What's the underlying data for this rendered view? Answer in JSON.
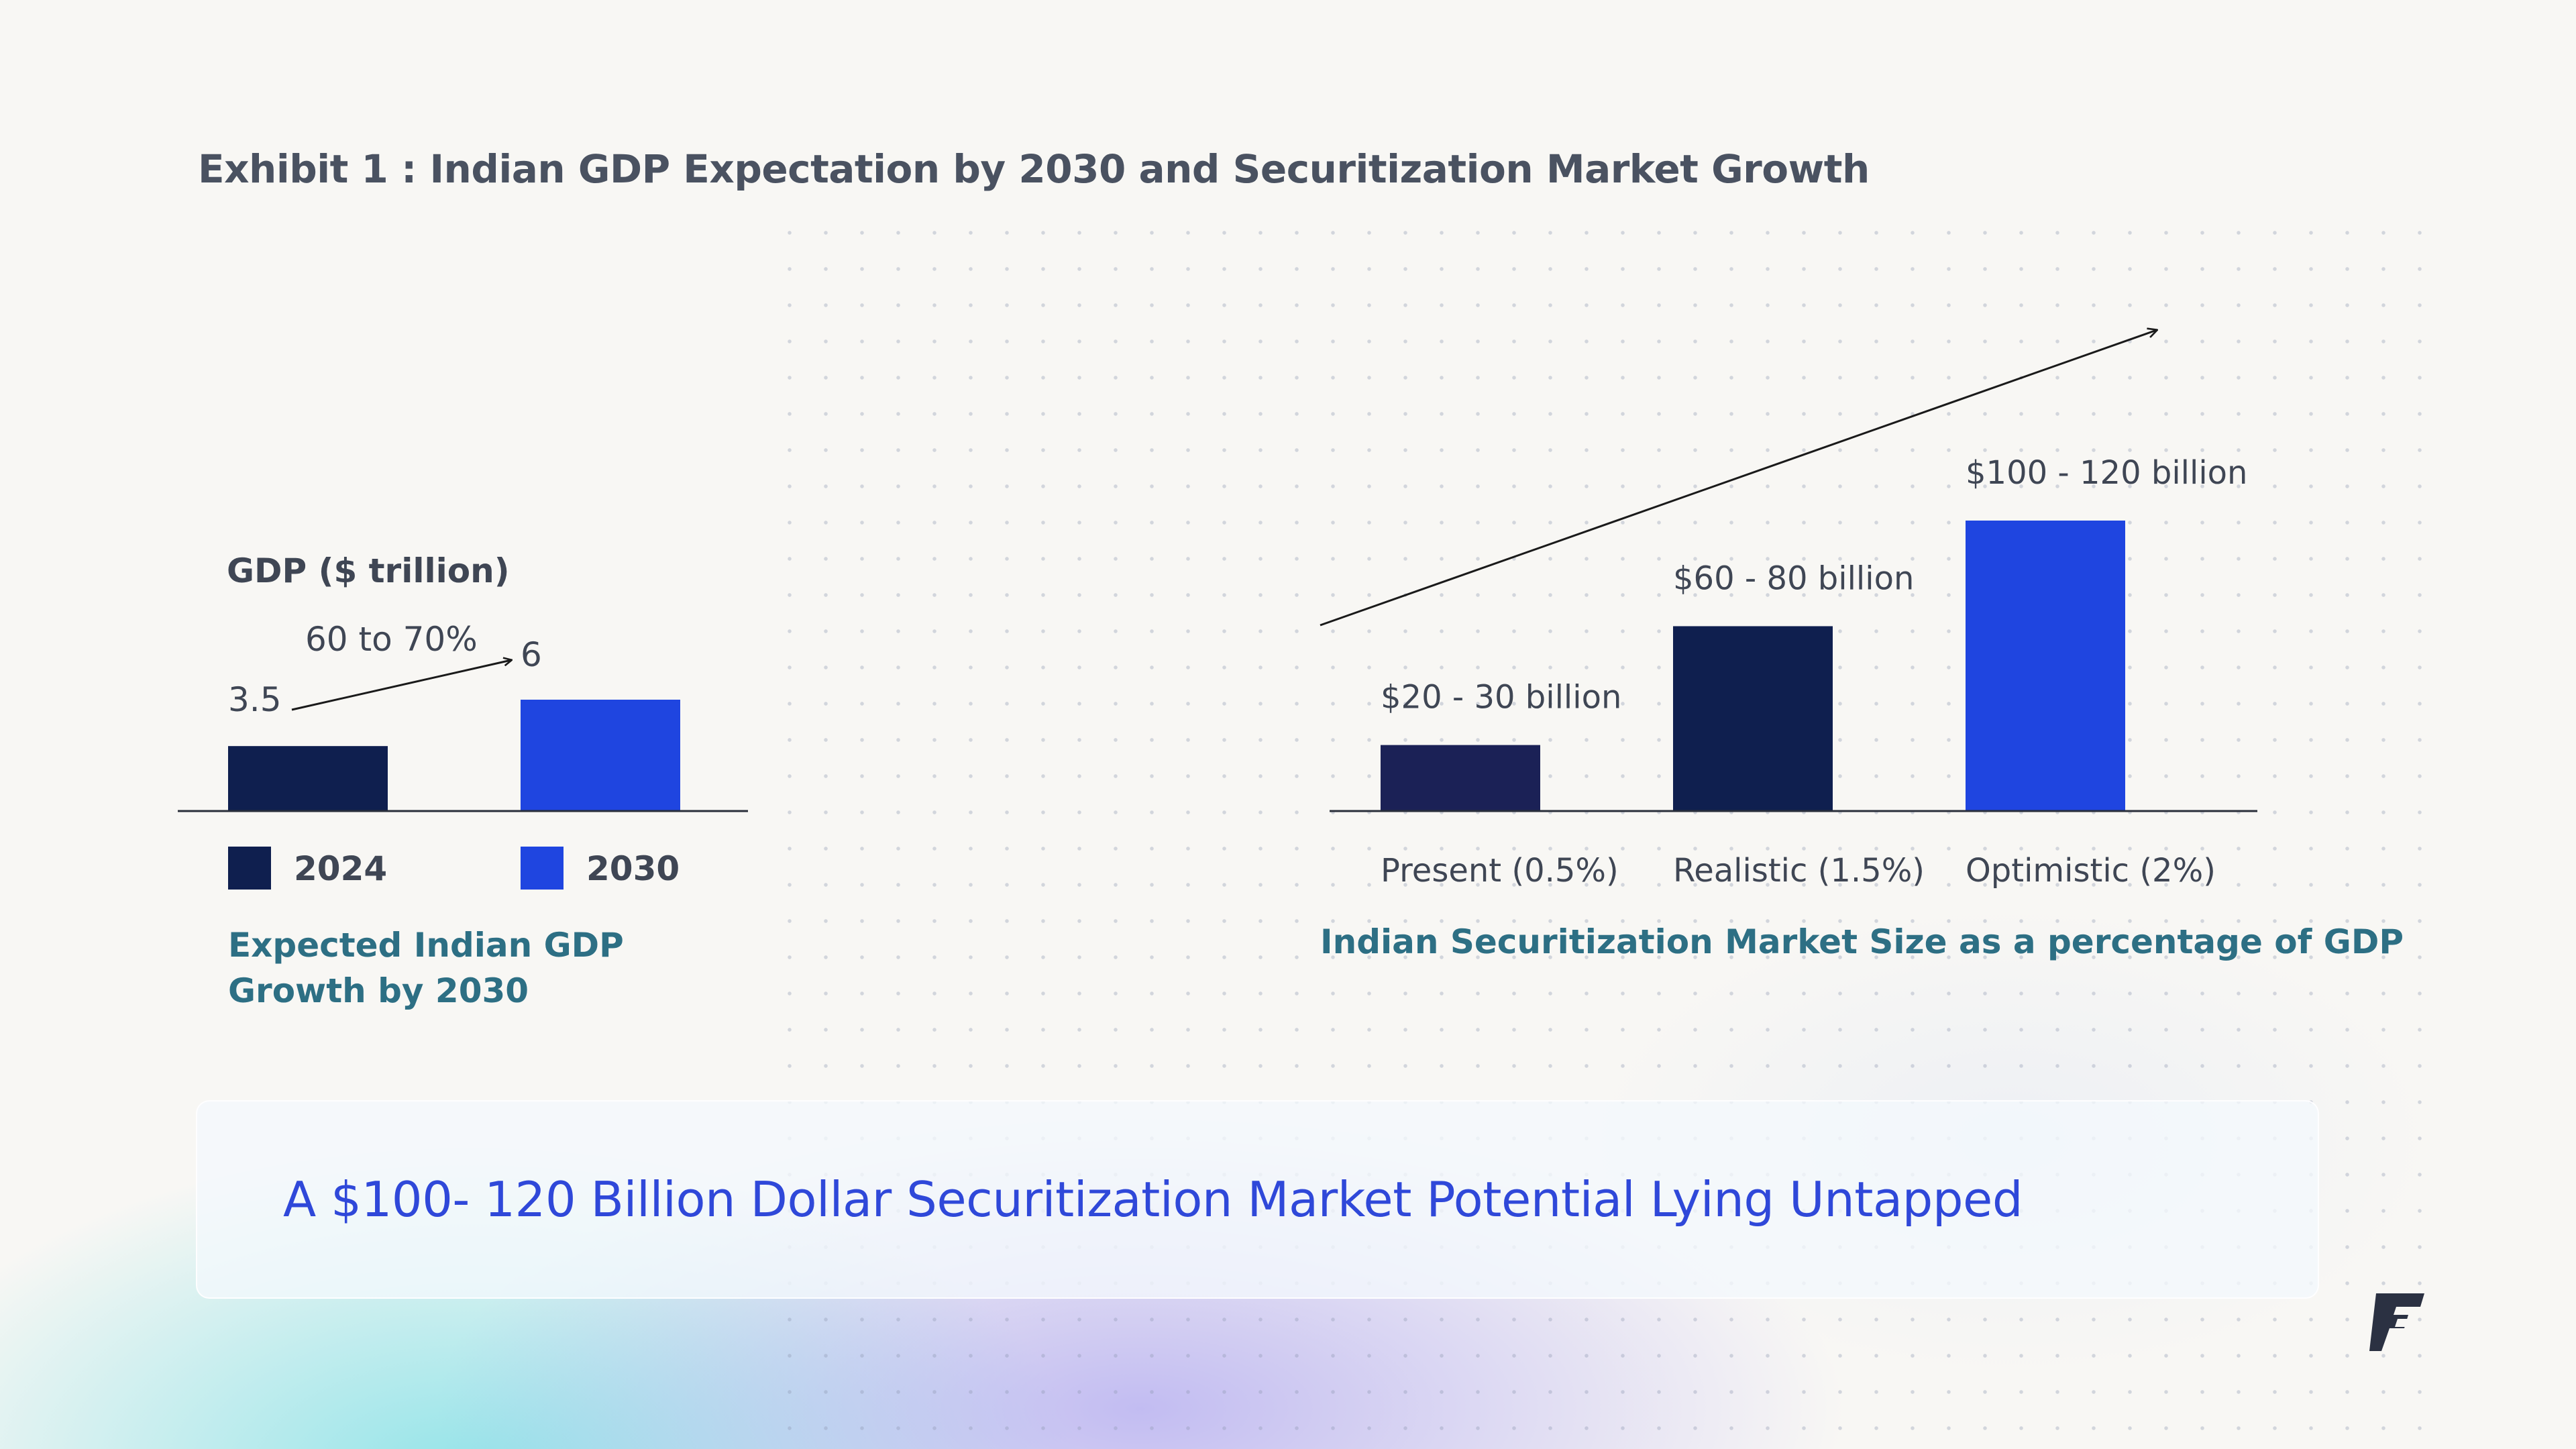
{
  "title": "Exhibit 1 : Indian GDP Expectation by 2030 and Securitization Market Growth",
  "colors": {
    "dark_navy": "#0f1f4f",
    "blue": "#1f45e0",
    "text": "#3f4654",
    "caption": "#2d6f84",
    "banner_text": "#2f48d9"
  },
  "chart_data": [
    {
      "type": "bar",
      "title": "Expected Indian GDP Growth by 2030",
      "caption_lines": [
        "Expected Indian GDP",
        "Growth by 2030"
      ],
      "ylabel": "GDP ($ trillion)",
      "categories": [
        "2024",
        "2030"
      ],
      "values": [
        3.5,
        6
      ],
      "value_labels": [
        "3.5",
        "6"
      ],
      "colors": [
        "#0f1f4f",
        "#1f45e0"
      ],
      "legend": [
        {
          "label": "2024",
          "color": "#0f1f4f"
        },
        {
          "label": "2030",
          "color": "#1f45e0"
        }
      ],
      "annotation": "60 to 70%",
      "ylim": [
        0,
        6
      ]
    },
    {
      "type": "bar",
      "title": "Indian Securitization Market Size as a percentage of GDP",
      "categories": [
        "Present (0.5%)",
        "Realistic (1.5%)",
        "Optimistic (2%)"
      ],
      "values": [
        25,
        70,
        110
      ],
      "value_labels": [
        "$20 - 30 billion",
        "$60 - 80 billion",
        "$100 - 120 billion"
      ],
      "colors": [
        "#1b2156",
        "#0f1f4f",
        "#1f45e0"
      ],
      "ylim": [
        0,
        110
      ]
    }
  ],
  "banner": {
    "text": "A $100- 120 Billion Dollar Securitization Market Potential Lying Untapped"
  },
  "logo": {
    "icon": "brand-logo-icon"
  }
}
